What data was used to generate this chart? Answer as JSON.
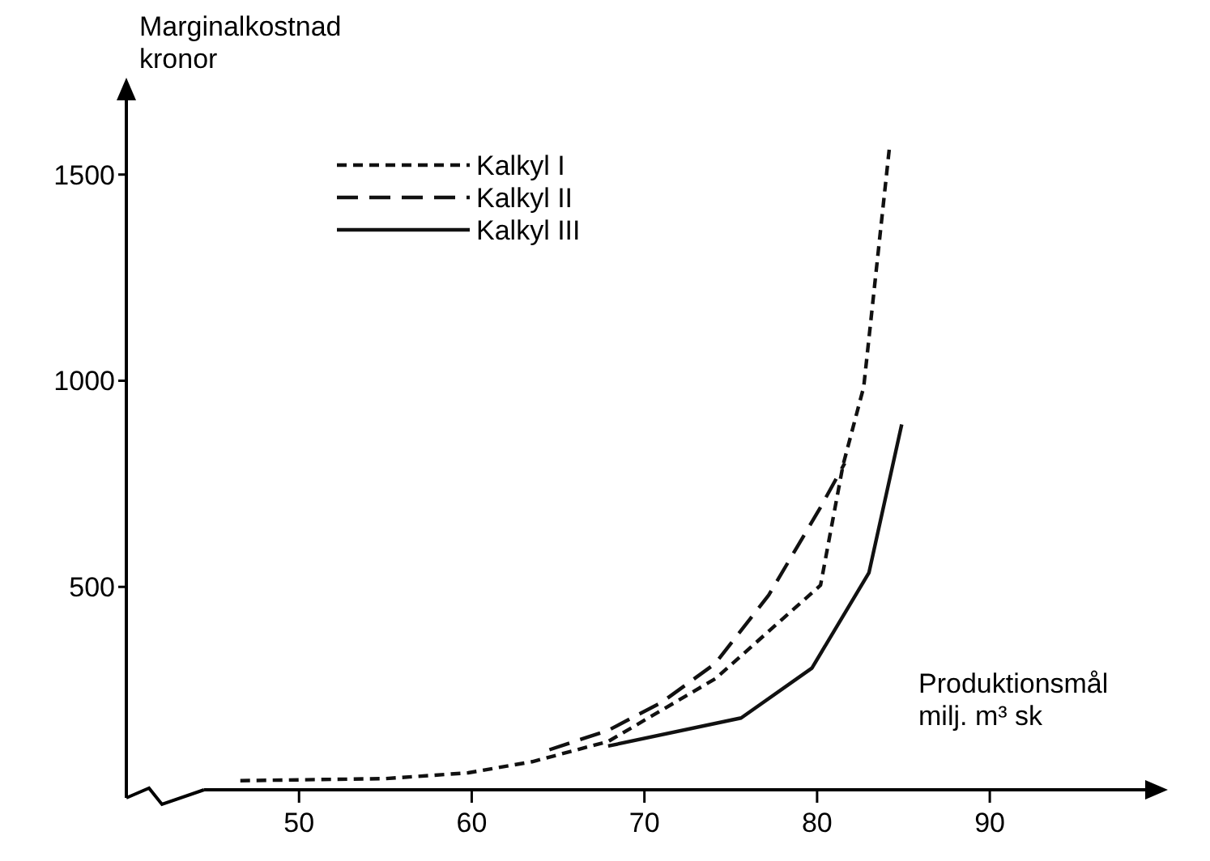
{
  "chart_data": {
    "type": "line",
    "xlabel": "Produktionsmål\nmilj. m³ sk",
    "ylabel": "Marginalkostnad\nkronor",
    "xlim": [
      40,
      99
    ],
    "xticks": [
      50,
      60,
      70,
      80,
      90
    ],
    "ylim": [
      0,
      1680
    ],
    "yticks": [
      500,
      1000,
      1500
    ],
    "grid": false,
    "legend": "top left",
    "marker": "none",
    "series": [
      {
        "name": "Kalkyl I",
        "color": "#111111",
        "line_style": "dotted",
        "x": [
          46.6,
          55,
          59.8,
          63.5,
          67.9,
          74.1,
          80.2,
          81.5,
          82.7,
          84.2
        ],
        "values": [
          30,
          35,
          49,
          76,
          125,
          277,
          504,
          795,
          985,
          1570
        ]
      },
      {
        "name": "Kalkyl II",
        "color": "#111111",
        "line_style": "dashed",
        "x": [
          64.5,
          67.9,
          71,
          74.1,
          77.2,
          80.2,
          81.6
        ],
        "values": [
          105,
          152,
          220,
          314,
          480,
          693,
          800
        ]
      },
      {
        "name": "Kalkyl III",
        "color": "#111111",
        "line_style": "solid",
        "x": [
          67.9,
          75.6,
          79.7,
          83,
          84.9
        ],
        "values": [
          114,
          182,
          303,
          534,
          894
        ]
      }
    ]
  }
}
